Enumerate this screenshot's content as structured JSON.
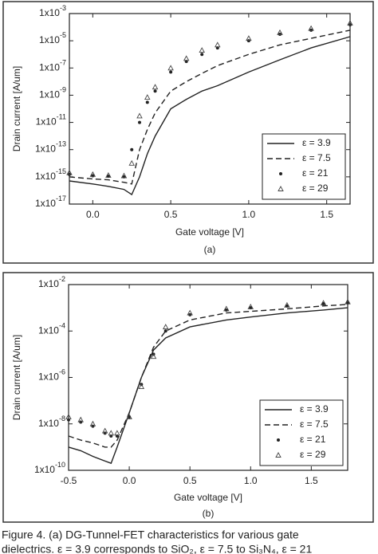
{
  "chart_data": [
    {
      "type": "line",
      "panel_label": "(a)",
      "x_label": "Gate voltage [V]",
      "y_label": "Drain current [A/um]",
      "log_y": true,
      "legend": "lower right",
      "x": [
        -0.15,
        0,
        0.1,
        0.2,
        0.25,
        0.3,
        0.35,
        0.4,
        0.5,
        0.6,
        0.7,
        0.8,
        1.0,
        1.2,
        1.4,
        1.65
      ],
      "xlim": [
        -0.15,
        1.65
      ],
      "xticks": [
        {
          "value": 0,
          "label": "0.0"
        },
        0.5,
        {
          "value": 1,
          "label": "1.0"
        },
        1.5
      ],
      "ylim": [
        1e-17,
        0.001
      ],
      "yticks": [
        {
          "value": 0.001,
          "label": "1x10",
          "sup": "-3"
        },
        {
          "value": 1e-05,
          "label": "1x10",
          "sup": "-5"
        },
        {
          "value": 1e-07,
          "label": "1x10",
          "sup": "-7"
        },
        {
          "value": 1e-09,
          "label": "1x10",
          "sup": "-9"
        },
        {
          "value": 1e-11,
          "label": "1x10",
          "sup": "-11"
        },
        {
          "value": 1e-13,
          "label": "1x10",
          "sup": "-13"
        },
        {
          "value": 1e-15,
          "label": "1x10",
          "sup": "-15"
        },
        {
          "value": 1e-17,
          "label": "1x10",
          "sup": "-17"
        }
      ],
      "series": [
        {
          "name": "ε = 3.9",
          "color": "#222222",
          "style": "solid",
          "values": [
            5e-16,
            3e-16,
            2e-16,
            1.2e-16,
            5e-17,
            1e-15,
            5e-14,
            1e-12,
            1e-10,
            5e-10,
            2e-09,
            5e-09,
            5e-08,
            4e-07,
            3e-06,
            2e-05
          ]
        },
        {
          "name": "ε = 7.5",
          "color": "#222222",
          "style": "dashed",
          "values": [
            1e-15,
            7e-16,
            6e-16,
            4e-16,
            3e-16,
            1e-13,
            3e-12,
            5e-11,
            2e-09,
            1e-08,
            4e-08,
            1.5e-07,
            1e-06,
            5e-06,
            1.5e-05,
            6e-05
          ]
        },
        {
          "name": "ε = 21",
          "color": "#222222",
          "style": "dots",
          "values": [
            1.5e-15,
            1.2e-15,
            1.1e-15,
            1e-15,
            1e-13,
            1e-11,
            3e-10,
            2e-09,
            5e-08,
            3e-07,
            1e-06,
            3e-06,
            1e-05,
            3e-05,
            6e-05,
            0.00015
          ]
        },
        {
          "name": "ε = 29",
          "color": "#444444",
          "style": "triangles",
          "values": [
            2e-15,
            1.5e-15,
            1.3e-15,
            1.2e-15,
            1e-14,
            3e-11,
            7e-10,
            4e-09,
            1e-07,
            5e-07,
            2e-06,
            5e-06,
            1.5e-05,
            4e-05,
            8e-05,
            0.0002
          ]
        }
      ]
    },
    {
      "type": "line",
      "panel_label": "(b)",
      "x_label": "Gate voltage [V]",
      "y_label": "Drain current [A/um]",
      "log_y": true,
      "legend": "lower right",
      "x": [
        -0.5,
        -0.4,
        -0.3,
        -0.2,
        -0.15,
        -0.1,
        0,
        0.1,
        0.2,
        0.3,
        0.5,
        0.8,
        1.0,
        1.3,
        1.6,
        1.8
      ],
      "xlim": [
        -0.5,
        1.8
      ],
      "xticks": [
        -0.5,
        {
          "value": 0,
          "label": "0.0"
        },
        0.5,
        {
          "value": 1,
          "label": "1.0"
        },
        1.5
      ],
      "ylim": [
        1e-10,
        0.01
      ],
      "yticks": [
        {
          "value": 0.01,
          "label": "1x10",
          "sup": "-2"
        },
        {
          "value": 0.0001,
          "label": "1x10",
          "sup": "-4"
        },
        {
          "value": 1e-06,
          "label": "1x10",
          "sup": "-6"
        },
        {
          "value": 1e-08,
          "label": "1x10",
          "sup": "-8"
        },
        {
          "value": 1e-10,
          "label": "1x10",
          "sup": "-10"
        }
      ],
      "series": [
        {
          "name": "ε = 3.9",
          "color": "#222222",
          "style": "solid",
          "values": [
            1e-09,
            7e-10,
            4e-10,
            2.5e-10,
            2e-10,
            1e-09,
            3e-08,
            1e-06,
            1.5e-05,
            5e-05,
            0.00015,
            0.0003,
            0.0004,
            0.0006,
            0.0008,
            0.001
          ]
        },
        {
          "name": "ε = 7.5",
          "color": "#222222",
          "style": "dashed",
          "values": [
            3e-09,
            2e-09,
            1.5e-09,
            1e-09,
            1e-09,
            2e-09,
            3e-08,
            1e-06,
            2e-05,
            0.0001,
            0.0003,
            0.0006,
            0.0007,
            0.0009,
            0.0012,
            0.0014
          ]
        },
        {
          "name": "ε = 21",
          "color": "#222222",
          "style": "dots",
          "values": [
            1.5e-08,
            1.2e-08,
            8e-09,
            4e-09,
            3e-09,
            3e-09,
            2e-08,
            5e-07,
            1e-05,
            0.0001,
            0.0005,
            0.0008,
            0.001,
            0.0012,
            0.0015,
            0.0016
          ]
        },
        {
          "name": "ε = 29",
          "color": "#444444",
          "style": "triangles",
          "values": [
            2e-08,
            1.5e-08,
            1e-08,
            5e-09,
            4e-09,
            4e-09,
            2e-08,
            4e-07,
            8e-06,
            0.00015,
            0.0006,
            0.0009,
            0.0011,
            0.0013,
            0.0016,
            0.0018
          ]
        }
      ]
    }
  ],
  "caption": [
    "Figure 4. (a) DG-Tunnel-FET characteristics for various gate",
    "dielectrics. ε = 3.9 corresponds to SiO₂, ε = 7.5 to Si₃N₄, ε = 21"
  ]
}
